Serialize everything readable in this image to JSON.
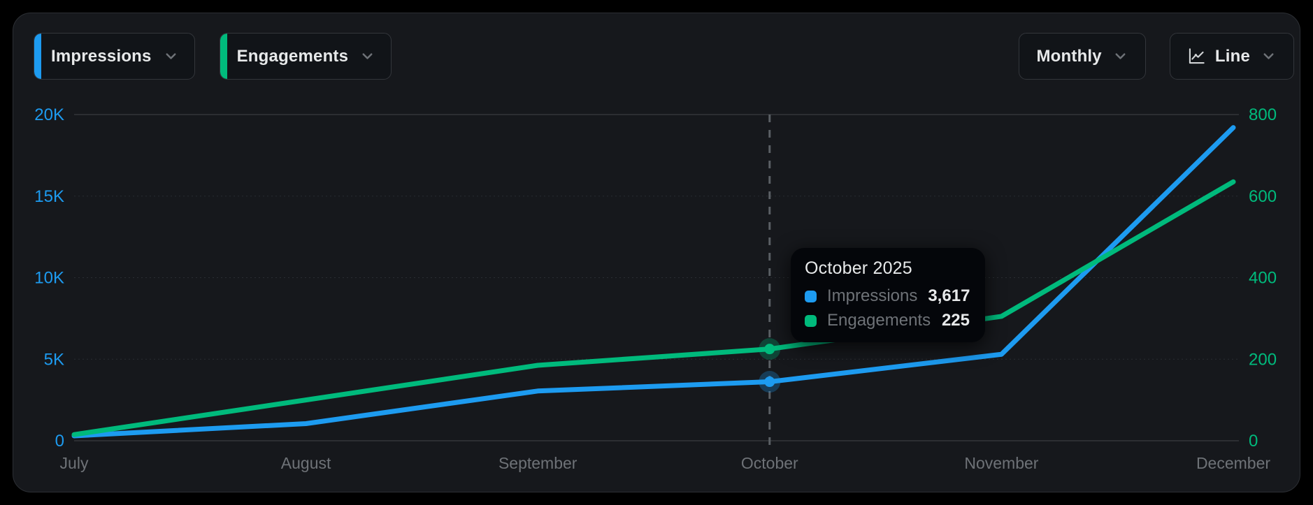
{
  "header": {
    "metric_selectors": [
      {
        "label": "Impressions",
        "color": "#1d9bf0"
      },
      {
        "label": "Engagements",
        "color": "#00ba7c"
      }
    ],
    "period_selector": {
      "label": "Monthly"
    },
    "chart_type_selector": {
      "label": "Line"
    }
  },
  "tooltip": {
    "title": "October 2025",
    "rows": [
      {
        "label": "Impressions",
        "value": "3,617",
        "color": "#1d9bf0"
      },
      {
        "label": "Engagements",
        "value": "225",
        "color": "#00ba7c"
      }
    ]
  },
  "chart_data": {
    "type": "line",
    "title": "",
    "x": [
      "July",
      "August",
      "September",
      "October",
      "November",
      "December"
    ],
    "series": [
      {
        "name": "Impressions",
        "axis": "left",
        "color": "#1d9bf0",
        "values": [
          300,
          1050,
          3050,
          3617,
          5300,
          19200
        ]
      },
      {
        "name": "Engagements",
        "axis": "right",
        "color": "#00ba7c",
        "values": [
          15,
          100,
          185,
          225,
          305,
          635
        ]
      }
    ],
    "left_axis": {
      "ticks": [
        "0",
        "5K",
        "10K",
        "15K",
        "20K"
      ],
      "tick_values": [
        0,
        5000,
        10000,
        15000,
        20000
      ],
      "range": [
        0,
        20000
      ],
      "color": "#1d9bf0"
    },
    "right_axis": {
      "ticks": [
        "0",
        "200",
        "400",
        "600",
        "800"
      ],
      "tick_values": [
        0,
        200,
        400,
        600,
        800
      ],
      "range": [
        0,
        800
      ],
      "color": "#00ba7c"
    },
    "highlight": {
      "x_index": 3,
      "label": "October 2025",
      "values": {
        "Impressions": 3617,
        "Engagements": 225
      }
    },
    "grid": true,
    "legend_position": "none"
  },
  "colors": {
    "background": "#000000",
    "card": "#16181c",
    "border": "#2c2f34",
    "text_primary": "#e7e9ea",
    "text_secondary": "#6e7277",
    "grid_strong": "#33363a",
    "grid_faint": "#3c4046",
    "crosshair": "#5b6065"
  }
}
